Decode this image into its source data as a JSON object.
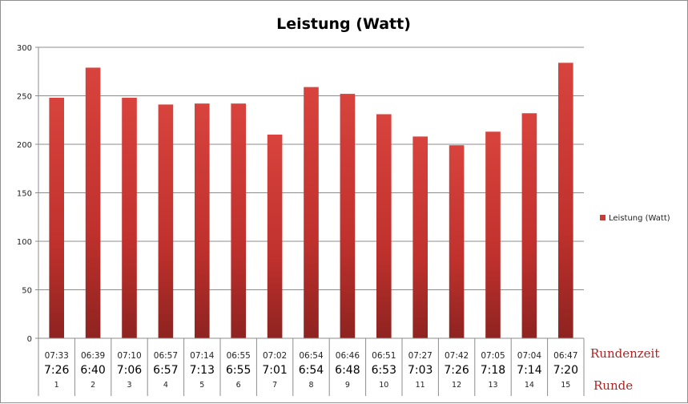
{
  "chart_data": {
    "type": "bar",
    "title": "Leistung (Watt)",
    "xlabel": "",
    "ylabel": "",
    "ylim": [
      0,
      300
    ],
    "yticks": [
      0,
      50,
      100,
      150,
      200,
      250,
      300
    ],
    "grid": true,
    "legend_position": "right",
    "bar_color": "#c83c38",
    "categories": [
      "1",
      "2",
      "3",
      "4",
      "5",
      "6",
      "7",
      "8",
      "9",
      "10",
      "11",
      "12",
      "13",
      "14",
      "15"
    ],
    "category_rows": {
      "rundenzeit_small": [
        "07:33",
        "06:39",
        "07:10",
        "06:57",
        "07:14",
        "06:55",
        "07:02",
        "06:54",
        "06:46",
        "06:51",
        "07:27",
        "07:42",
        "07:05",
        "07:04",
        "06:47"
      ],
      "rundenzeit_large": [
        "7:26",
        "6:40",
        "7:06",
        "6:57",
        "7:13",
        "6:55",
        "7:01",
        "6:54",
        "6:48",
        "6:53",
        "7:03",
        "7:26",
        "7:18",
        "7:14",
        "7:20"
      ]
    },
    "series": [
      {
        "name": "Leistung (Watt)",
        "values": [
          248,
          279,
          248,
          241,
          242,
          242,
          210,
          259,
          252,
          231,
          208,
          199,
          213,
          232,
          284
        ]
      }
    ],
    "row_labels": {
      "rundenzeit": "Rundenzeit",
      "runde": "Runde"
    }
  }
}
